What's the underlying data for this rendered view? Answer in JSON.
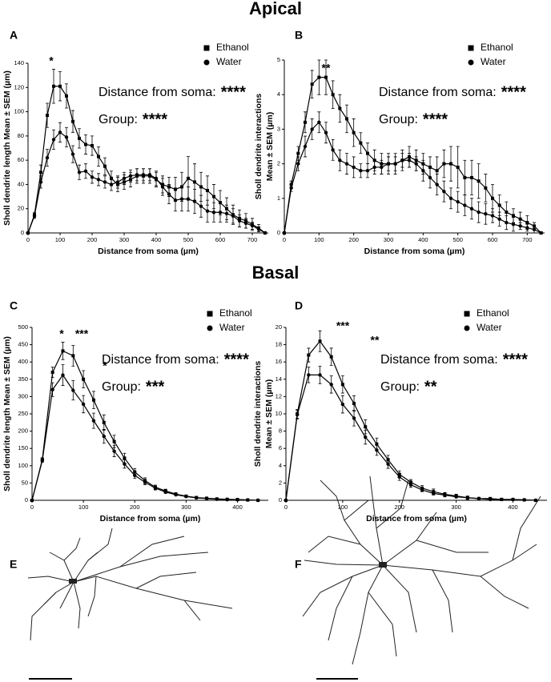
{
  "headings": {
    "apical": "Apical",
    "basal": "Basal"
  },
  "drawings": [
    {
      "panel": "E"
    },
    {
      "panel": "F"
    }
  ],
  "chart_data": [
    {
      "type": "line",
      "panel": "A",
      "xlabel": "Distance from soma (µm)",
      "ylabel": [
        "Sholl dendrite length Mean ± SEM (µm)"
      ],
      "x": [
        0,
        20,
        40,
        60,
        80,
        100,
        120,
        140,
        160,
        180,
        200,
        220,
        240,
        260,
        280,
        300,
        320,
        340,
        360,
        380,
        400,
        420,
        440,
        460,
        480,
        500,
        520,
        540,
        560,
        580,
        600,
        620,
        640,
        660,
        680,
        700,
        720,
        740
      ],
      "xlim": [
        0,
        750
      ],
      "xticks": [
        0,
        100,
        200,
        300,
        400,
        500,
        600,
        700
      ],
      "ylim": [
        0,
        140
      ],
      "yticks": [
        0,
        20,
        40,
        60,
        80,
        100,
        120,
        140
      ],
      "legend": "upper right",
      "series": [
        {
          "name": "Ethanol",
          "marker": "square",
          "color": "#000000",
          "values": [
            0,
            15,
            50,
            97,
            121,
            121,
            113,
            92,
            78,
            73,
            72,
            63,
            55,
            45,
            40,
            42,
            44,
            47,
            47,
            47,
            44,
            40,
            38,
            36,
            38,
            45,
            42,
            38,
            35,
            30,
            25,
            20,
            15,
            12,
            10,
            7,
            4,
            0
          ],
          "errors": [
            0,
            2,
            6,
            10,
            14,
            12,
            10,
            9,
            8,
            8,
            8,
            8,
            7,
            6,
            6,
            6,
            6,
            6,
            6,
            6,
            6,
            7,
            8,
            10,
            12,
            18,
            15,
            12,
            12,
            10,
            10,
            9,
            8,
            7,
            6,
            5,
            3,
            0
          ]
        },
        {
          "name": "Water",
          "marker": "circle",
          "color": "#000000",
          "values": [
            0,
            14,
            42,
            62,
            77,
            83,
            79,
            65,
            50,
            51,
            46,
            44,
            42,
            40,
            42,
            45,
            47,
            48,
            48,
            48,
            45,
            38,
            32,
            27,
            28,
            28,
            26,
            22,
            18,
            17,
            17,
            16,
            14,
            10,
            8,
            6,
            3,
            0
          ],
          "errors": [
            0,
            2,
            5,
            7,
            8,
            8,
            8,
            7,
            6,
            6,
            5,
            5,
            5,
            5,
            5,
            5,
            5,
            5,
            5,
            5,
            6,
            7,
            8,
            9,
            10,
            10,
            10,
            9,
            9,
            8,
            8,
            7,
            6,
            5,
            4,
            3,
            2,
            0
          ]
        }
      ],
      "annotations": [
        "*"
      ],
      "stats": [
        {
          "label": "Distance from soma:",
          "stars": "****"
        },
        {
          "label": "Group:",
          "stars": "****"
        }
      ]
    },
    {
      "type": "line",
      "panel": "B",
      "xlabel": "Distance from soma (µm)",
      "ylabel": [
        "Sholl dendrite interactions",
        "Mean ± SEM (µm)"
      ],
      "x": [
        0,
        20,
        40,
        60,
        80,
        100,
        120,
        140,
        160,
        180,
        200,
        220,
        240,
        260,
        280,
        300,
        320,
        340,
        360,
        380,
        400,
        420,
        440,
        460,
        480,
        500,
        520,
        540,
        560,
        580,
        600,
        620,
        640,
        660,
        680,
        700,
        720,
        740
      ],
      "xlim": [
        0,
        750
      ],
      "xticks": [
        0,
        100,
        200,
        300,
        400,
        500,
        600,
        700
      ],
      "ylim": [
        0,
        5
      ],
      "yticks": [
        0,
        1,
        2,
        3,
        4,
        5
      ],
      "legend": "upper right",
      "series": [
        {
          "name": "Ethanol",
          "marker": "square",
          "color": "#000000",
          "values": [
            0,
            1.4,
            2.3,
            3.2,
            4.3,
            4.5,
            4.5,
            4.0,
            3.6,
            3.3,
            2.9,
            2.6,
            2.3,
            2.1,
            2.0,
            2.0,
            2.0,
            2.1,
            2.2,
            2.1,
            2.0,
            1.9,
            1.8,
            2.0,
            2.0,
            1.9,
            1.6,
            1.6,
            1.5,
            1.3,
            1.0,
            0.8,
            0.6,
            0.5,
            0.4,
            0.3,
            0.2,
            0
          ],
          "errors": [
            0,
            0.1,
            0.2,
            0.3,
            0.4,
            0.5,
            0.5,
            0.4,
            0.4,
            0.4,
            0.4,
            0.3,
            0.3,
            0.3,
            0.3,
            0.3,
            0.3,
            0.3,
            0.3,
            0.3,
            0.3,
            0.3,
            0.4,
            0.4,
            0.5,
            0.6,
            0.5,
            0.5,
            0.5,
            0.4,
            0.4,
            0.3,
            0.3,
            0.2,
            0.2,
            0.2,
            0.1,
            0
          ]
        },
        {
          "name": "Water",
          "marker": "circle",
          "color": "#000000",
          "values": [
            0,
            1.3,
            2.0,
            2.5,
            3.0,
            3.2,
            2.9,
            2.4,
            2.1,
            2.0,
            1.9,
            1.8,
            1.8,
            1.9,
            1.9,
            2.0,
            2.0,
            2.1,
            2.1,
            2.0,
            1.8,
            1.6,
            1.4,
            1.2,
            1.0,
            0.9,
            0.8,
            0.7,
            0.6,
            0.55,
            0.5,
            0.4,
            0.3,
            0.25,
            0.2,
            0.15,
            0.1,
            0
          ],
          "errors": [
            0,
            0.1,
            0.2,
            0.3,
            0.3,
            0.3,
            0.3,
            0.3,
            0.3,
            0.3,
            0.3,
            0.2,
            0.2,
            0.2,
            0.2,
            0.2,
            0.2,
            0.2,
            0.2,
            0.2,
            0.3,
            0.3,
            0.3,
            0.3,
            0.3,
            0.3,
            0.3,
            0.3,
            0.3,
            0.3,
            0.2,
            0.2,
            0.2,
            0.2,
            0.1,
            0.1,
            0.1,
            0
          ]
        }
      ],
      "annotations": [
        "**"
      ],
      "stats": [
        {
          "label": "Distance from soma:",
          "stars": "****"
        },
        {
          "label": "Group:",
          "stars": "****"
        }
      ]
    },
    {
      "type": "line",
      "panel": "C",
      "xlabel": "Distance from soma (µm)",
      "ylabel": [
        "Sholl dendrite length Mean ± SEM (µm)"
      ],
      "x": [
        0,
        20,
        40,
        60,
        80,
        100,
        120,
        140,
        160,
        180,
        200,
        220,
        240,
        260,
        280,
        300,
        320,
        340,
        360,
        380,
        400,
        420,
        440
      ],
      "xlim": [
        0,
        460
      ],
      "xticks": [
        0,
        100,
        200,
        300,
        400
      ],
      "ylim": [
        0,
        500
      ],
      "yticks": [
        0,
        50,
        100,
        150,
        200,
        250,
        300,
        350,
        400,
        450,
        500
      ],
      "legend": "upper right",
      "series": [
        {
          "name": "Ethanol",
          "marker": "square",
          "color": "#000000",
          "values": [
            0,
            118,
            370,
            432,
            418,
            350,
            290,
            225,
            170,
            122,
            82,
            57,
            38,
            27,
            18,
            12,
            8,
            6,
            4,
            3,
            2,
            1,
            0
          ],
          "errors": [
            0,
            5,
            15,
            25,
            30,
            25,
            25,
            22,
            18,
            14,
            10,
            8,
            6,
            5,
            4,
            3,
            2,
            2,
            2,
            1,
            1,
            1,
            0
          ]
        },
        {
          "name": "Water",
          "marker": "circle",
          "color": "#000000",
          "values": [
            0,
            115,
            320,
            362,
            318,
            278,
            230,
            185,
            142,
            105,
            72,
            52,
            35,
            24,
            16,
            11,
            7,
            5,
            3,
            2,
            2,
            1,
            0
          ],
          "errors": [
            0,
            5,
            20,
            30,
            28,
            25,
            22,
            20,
            16,
            12,
            9,
            7,
            5,
            4,
            3,
            2,
            2,
            1,
            1,
            1,
            1,
            1,
            0
          ]
        }
      ],
      "annotations": [
        "*",
        "***",
        "*"
      ],
      "stats": [
        {
          "label": "Distance from soma:",
          "stars": "****"
        },
        {
          "label": "Group:",
          "stars": "***"
        }
      ]
    },
    {
      "type": "line",
      "panel": "D",
      "xlabel": "Distance from soma (µm)",
      "ylabel": [
        "Sholl dendrite interactions",
        "Mean ± SEM (µm)"
      ],
      "x": [
        0,
        20,
        40,
        60,
        80,
        100,
        120,
        140,
        160,
        180,
        200,
        220,
        240,
        260,
        280,
        300,
        320,
        340,
        360,
        380,
        400,
        420,
        440
      ],
      "xlim": [
        0,
        460
      ],
      "xticks": [
        0,
        100,
        200,
        300,
        400
      ],
      "ylim": [
        0,
        20
      ],
      "yticks": [
        0,
        2,
        4,
        6,
        8,
        10,
        12,
        14,
        16,
        18,
        20
      ],
      "legend": "upper right",
      "series": [
        {
          "name": "Ethanol",
          "marker": "square",
          "color": "#000000",
          "values": [
            0,
            10,
            16.8,
            18.4,
            16.6,
            13.4,
            11.2,
            8.5,
            6.5,
            4.7,
            3.0,
            2.1,
            1.4,
            1.0,
            0.7,
            0.5,
            0.3,
            0.2,
            0.2,
            0.1,
            0.1,
            0.05,
            0
          ],
          "errors": [
            0,
            0.5,
            0.8,
            1.2,
            1.0,
            1.0,
            0.9,
            0.8,
            0.7,
            0.5,
            0.4,
            0.3,
            0.3,
            0.3,
            0.2,
            0.2,
            0.2,
            0.1,
            0.1,
            0.1,
            0.1,
            0.05,
            0
          ]
        },
        {
          "name": "Water",
          "marker": "circle",
          "color": "#000000",
          "values": [
            0,
            9.9,
            14.5,
            14.5,
            13.4,
            11.1,
            9.5,
            7.3,
            5.8,
            4.2,
            2.7,
            1.8,
            1.2,
            0.8,
            0.6,
            0.4,
            0.3,
            0.2,
            0.1,
            0.1,
            0.1,
            0.05,
            0
          ],
          "errors": [
            0,
            0.5,
            0.9,
            1.0,
            1.0,
            1.0,
            0.9,
            0.8,
            0.6,
            0.5,
            0.4,
            0.3,
            0.2,
            0.2,
            0.2,
            0.1,
            0.1,
            0.1,
            0.1,
            0.1,
            0.1,
            0.05,
            0
          ]
        }
      ],
      "annotations": [
        "***",
        "**"
      ],
      "stats": [
        {
          "label": "Distance from soma:",
          "stars": "**** "
        },
        {
          "label": "Group:",
          "stars": "**"
        }
      ]
    }
  ]
}
